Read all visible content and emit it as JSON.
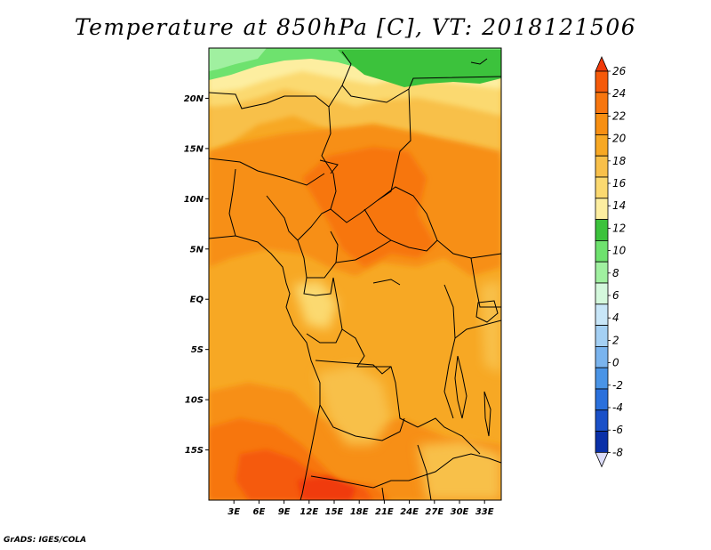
{
  "title": "Temperature at 850hPa [C], VT: 2018121506",
  "credit": "GrADS: IGES/COLA",
  "map": {
    "lat_ticks": [
      {
        "label": "20N",
        "lat": 20
      },
      {
        "label": "15N",
        "lat": 15
      },
      {
        "label": "10N",
        "lat": 10
      },
      {
        "label": "5N",
        "lat": 5
      },
      {
        "label": "EQ",
        "lat": 0
      },
      {
        "label": "5S",
        "lat": -5
      },
      {
        "label": "10S",
        "lat": -10
      },
      {
        "label": "15S",
        "lat": -15
      }
    ],
    "lon_ticks": [
      {
        "label": "3E",
        "lon": 3
      },
      {
        "label": "6E",
        "lon": 6
      },
      {
        "label": "9E",
        "lon": 9
      },
      {
        "label": "12E",
        "lon": 12
      },
      {
        "label": "15E",
        "lon": 15
      },
      {
        "label": "18E",
        "lon": 18
      },
      {
        "label": "21E",
        "lon": 21
      },
      {
        "label": "24E",
        "lon": 24
      },
      {
        "label": "27E",
        "lon": 27
      },
      {
        "label": "30E",
        "lon": 30
      },
      {
        "label": "33E",
        "lon": 33
      }
    ],
    "lon_range": [
      0,
      35
    ],
    "lat_range": [
      -20,
      25
    ]
  },
  "colorbar": {
    "levels": [
      "26",
      "24",
      "22",
      "20",
      "18",
      "16",
      "14",
      "12",
      "10",
      "8",
      "6",
      "4",
      "2",
      "0",
      "-2",
      "-4",
      "-6",
      "-8"
    ],
    "colors": [
      "#f03a0a",
      "#f55a0a",
      "#f7760f",
      "#f78f12",
      "#f7a824",
      "#f8c04a",
      "#fbd970",
      "#fdeea0",
      "#3cc23c",
      "#6ee26e",
      "#a0f0a0",
      "#d4f8dc",
      "#c8e6f8",
      "#a4d0f4",
      "#7ab4ee",
      "#4a94e6",
      "#2a70dc",
      "#1a50c8",
      "#0a30a8",
      "#000a80"
    ],
    "low_color": "#dcdcf8"
  }
}
